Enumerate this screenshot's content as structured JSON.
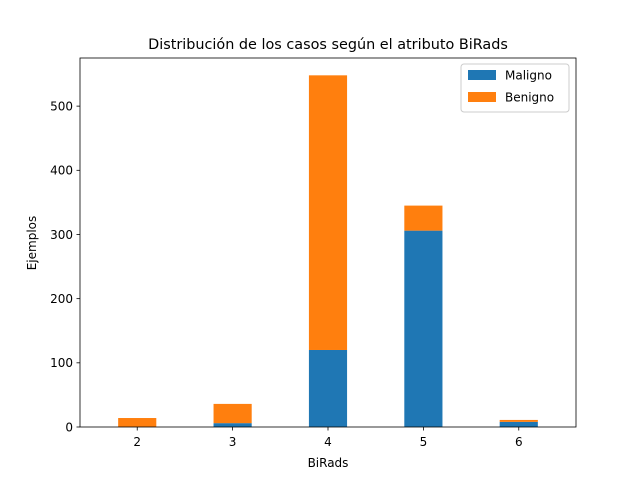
{
  "chart_data": {
    "type": "bar",
    "stacked": true,
    "title": "Distribución de los casos según el atributo BiRads",
    "xlabel": "BiRads",
    "ylabel": "Ejemplos",
    "categories": [
      "2",
      "3",
      "4",
      "5",
      "6"
    ],
    "series": [
      {
        "name": "Maligno",
        "color": "#1f77b4",
        "values": [
          0,
          6,
          120,
          306,
          8
        ]
      },
      {
        "name": "Benigno",
        "color": "#ff7f0e",
        "values": [
          14,
          30,
          428,
          39,
          3
        ]
      }
    ],
    "ylim": [
      0,
      575
    ],
    "yticks": [
      0,
      100,
      200,
      300,
      400,
      500
    ],
    "grid": false,
    "legend": "top-right"
  }
}
